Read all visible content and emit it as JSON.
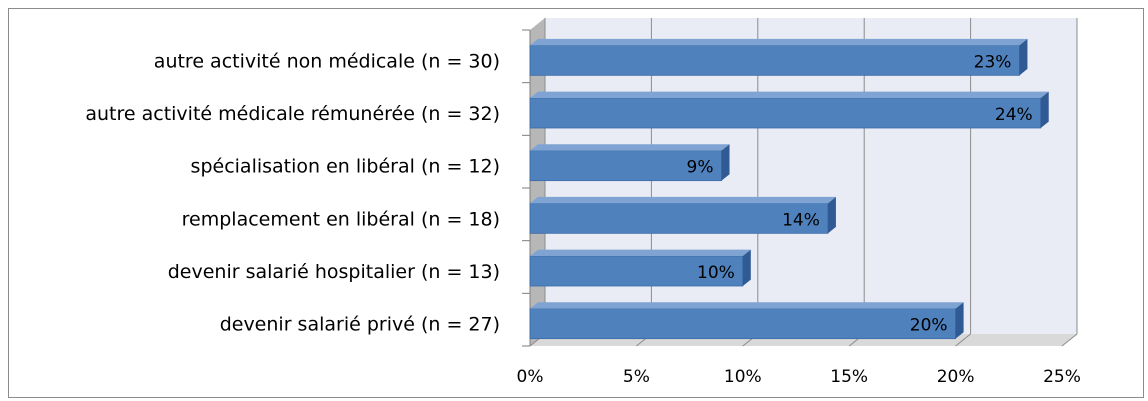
{
  "chart_data": {
    "type": "bar",
    "orientation": "horizontal",
    "categories": [
      "autre activité non médicale (n = 30)",
      "autre activité médicale rémunérée (n = 32)",
      "spécialisation en libéral (n = 12)",
      "remplacement en libéral (n = 18)",
      "devenir salarié hospitalier (n = 13)",
      "devenir salarié privé (n = 27)"
    ],
    "values": [
      23,
      24,
      9,
      14,
      10,
      20
    ],
    "data_labels": [
      "23%",
      "24%",
      "9%",
      "14%",
      "10%",
      "20%"
    ],
    "x_ticks": [
      "0%",
      "5%",
      "10%",
      "15%",
      "20%",
      "25%"
    ],
    "xlim": [
      0,
      25
    ],
    "grid": true,
    "three_d": true,
    "colors": {
      "bar_front": "#4f81bd",
      "bar_top": "#7fa3d2",
      "bar_side": "#2f5a93",
      "plot_back": "#e9ecf5",
      "wall_left": "#b7b7b7",
      "floor": "#d9d9d9",
      "grid": "#8c8c8c"
    }
  }
}
